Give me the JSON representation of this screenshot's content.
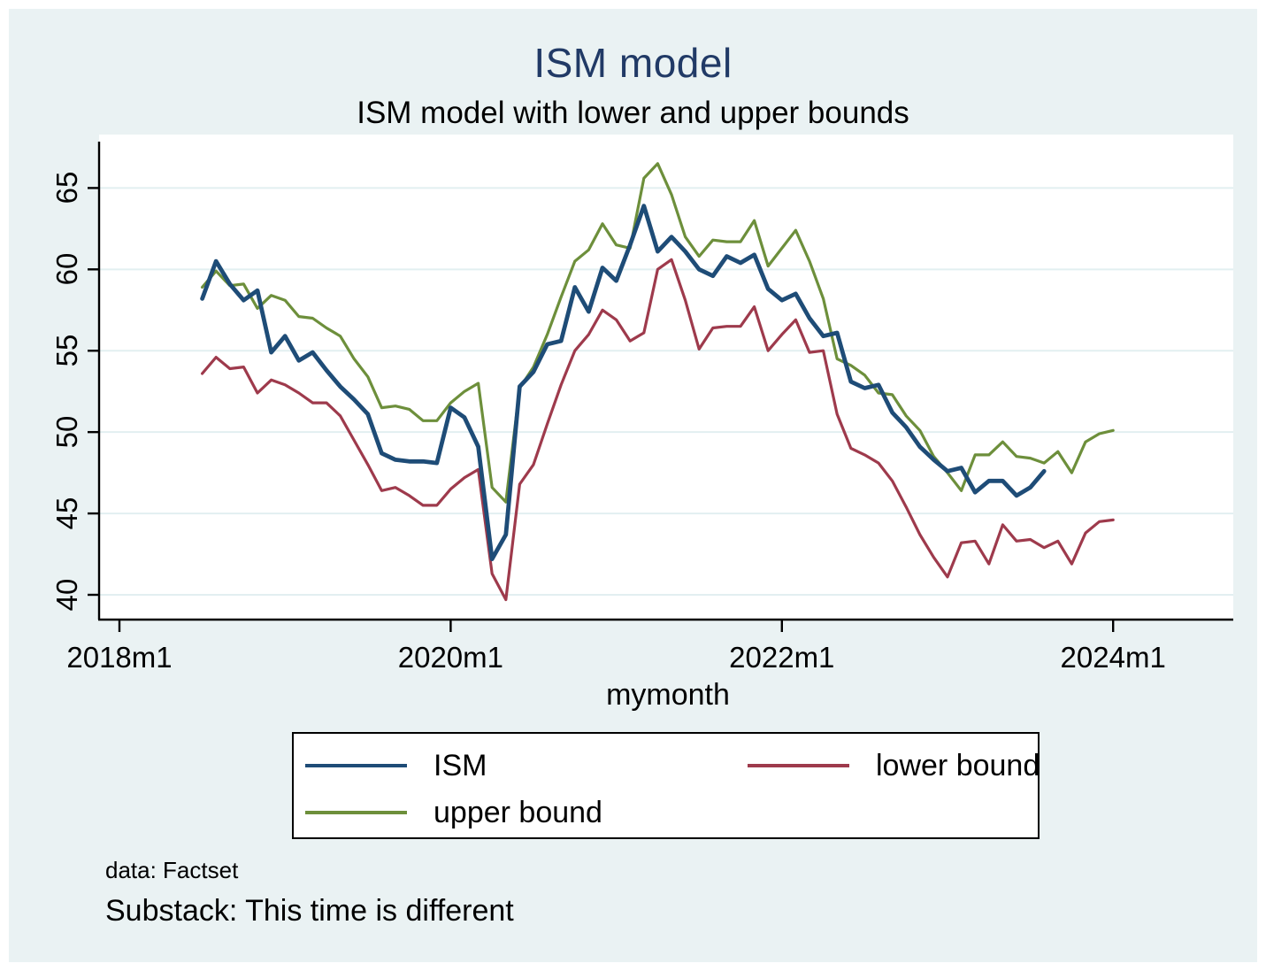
{
  "window": {
    "background": "#ffffff",
    "graph_background": "#eaf2f3",
    "plot_background": "#ffffff"
  },
  "title": "ISM model",
  "subtitle": "ISM model with lower and upper bounds",
  "notes": [
    "data: Factset",
    "Substack: This time is different"
  ],
  "chart_data": {
    "type": "line",
    "title": "ISM model",
    "subtitle": "ISM model with lower and upper bounds",
    "xlabel": "mymonth",
    "ylabel": "",
    "grid": true,
    "legend_position": "bottom",
    "ylim": [
      38.5,
      67.8
    ],
    "y_ticks": [
      40,
      45,
      50,
      55,
      60,
      65
    ],
    "x_axis": {
      "tick_labels": [
        "2018m1",
        "2020m1",
        "2022m1",
        "2024m1"
      ]
    },
    "gridline_color": "#e2eff1",
    "axis_color": "#000000",
    "x": [
      "2018m7",
      "2018m8",
      "2018m9",
      "2018m10",
      "2018m11",
      "2018m12",
      "2019m1",
      "2019m2",
      "2019m3",
      "2019m4",
      "2019m5",
      "2019m6",
      "2019m7",
      "2019m8",
      "2019m9",
      "2019m10",
      "2019m11",
      "2019m12",
      "2020m1",
      "2020m2",
      "2020m3",
      "2020m4",
      "2020m5",
      "2020m6",
      "2020m7",
      "2020m8",
      "2020m9",
      "2020m10",
      "2020m11",
      "2020m12",
      "2021m1",
      "2021m2",
      "2021m3",
      "2021m4",
      "2021m5",
      "2021m6",
      "2021m7",
      "2021m8",
      "2021m9",
      "2021m10",
      "2021m11",
      "2021m12",
      "2022m1",
      "2022m2",
      "2022m3",
      "2022m4",
      "2022m5",
      "2022m6",
      "2022m7",
      "2022m8",
      "2022m9",
      "2022m10",
      "2022m11",
      "2022m12",
      "2023m1",
      "2023m2",
      "2023m3",
      "2023m4",
      "2023m5",
      "2023m6",
      "2023m7",
      "2023m8",
      "2023m9",
      "2023m10",
      "2023m11",
      "2023m12",
      "2024m1"
    ],
    "series": [
      {
        "name": "ISM",
        "color": "#1e4c77",
        "width": 4.8,
        "values": [
          58.2,
          60.5,
          59.1,
          58.1,
          58.7,
          54.9,
          55.9,
          54.4,
          54.9,
          53.8,
          52.8,
          52.0,
          51.1,
          48.7,
          48.3,
          48.2,
          48.2,
          48.1,
          51.5,
          50.9,
          49.1,
          42.2,
          43.7,
          52.8,
          53.7,
          55.4,
          55.6,
          58.9,
          57.4,
          60.1,
          59.3,
          61.5,
          63.9,
          61.1,
          62.0,
          61.1,
          60.0,
          59.6,
          60.8,
          60.4,
          60.9,
          58.8,
          58.1,
          58.5,
          57.0,
          55.9,
          56.1,
          53.1,
          52.7,
          52.9,
          51.2,
          50.3,
          49.1,
          48.3,
          47.6,
          47.8,
          46.3,
          47.0,
          47.0,
          46.1,
          46.6,
          47.6,
          null,
          null,
          null,
          null,
          null
        ]
      },
      {
        "name": "lower bound",
        "color": "#9e3a4c",
        "width": 3.2,
        "values": [
          53.6,
          54.6,
          53.9,
          54.0,
          52.4,
          53.2,
          52.9,
          52.4,
          51.8,
          51.8,
          51.0,
          49.5,
          48.0,
          46.4,
          46.6,
          46.1,
          45.5,
          45.5,
          46.5,
          47.2,
          47.7,
          41.3,
          39.7,
          46.8,
          48.0,
          50.5,
          52.9,
          55.0,
          56.0,
          57.5,
          56.9,
          55.6,
          56.1,
          60.0,
          60.6,
          58.1,
          55.1,
          56.4,
          56.5,
          56.5,
          57.7,
          55.0,
          56.0,
          56.9,
          54.9,
          55.0,
          51.1,
          49.0,
          48.6,
          48.1,
          47.0,
          45.4,
          43.7,
          42.3,
          41.1,
          43.2,
          43.3,
          41.9,
          44.3,
          43.3,
          43.4,
          42.9,
          43.3,
          41.9,
          43.8,
          44.5,
          44.6
        ]
      },
      {
        "name": "upper bound",
        "color": "#6d8f3b",
        "width": 3.2,
        "values": [
          58.9,
          59.9,
          59.0,
          59.1,
          57.6,
          58.4,
          58.1,
          57.1,
          57.0,
          56.4,
          55.9,
          54.5,
          53.4,
          51.5,
          51.6,
          51.4,
          50.7,
          50.7,
          51.8,
          52.5,
          53.0,
          46.6,
          45.7,
          52.7,
          54.0,
          56.0,
          58.3,
          60.5,
          61.2,
          62.8,
          61.5,
          61.3,
          65.6,
          66.5,
          64.6,
          62.0,
          60.8,
          61.8,
          61.7,
          61.7,
          63.0,
          60.2,
          61.3,
          62.4,
          60.5,
          58.2,
          54.5,
          54.1,
          53.5,
          52.4,
          52.3,
          51.0,
          50.1,
          48.5,
          47.5,
          46.4,
          48.6,
          48.6,
          49.4,
          48.5,
          48.4,
          48.1,
          48.8,
          47.5,
          49.4,
          49.9,
          50.1
        ]
      }
    ]
  }
}
